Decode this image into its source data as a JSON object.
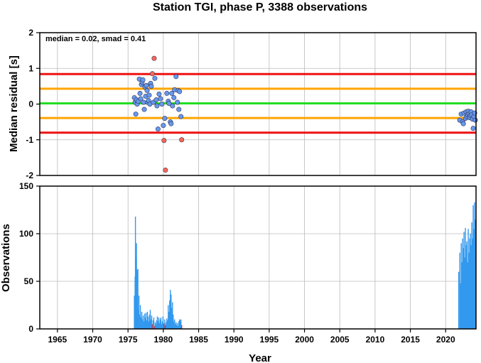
{
  "chart_data": [
    {
      "type": "scatter",
      "title": "Station TGI, phase P, 3388 observations",
      "ylabel": "Median residual [s]",
      "xlim": [
        1962.5,
        2024.3
      ],
      "ylim": [
        -2,
        2
      ],
      "yticks": [
        -2,
        -1,
        0,
        1,
        2
      ],
      "grid": true,
      "annotation": "median = 0.02, smad = 0.41",
      "reference_lines": [
        {
          "y": 0.02,
          "color": "#22dd22"
        },
        {
          "y": 0.43,
          "color": "#ffa500"
        },
        {
          "y": -0.39,
          "color": "#ffa500"
        },
        {
          "y": 0.84,
          "color": "#ee1111"
        },
        {
          "y": -0.8,
          "color": "#ee1111"
        }
      ],
      "colors": {
        "normal": "#6699ee",
        "outlier": "#ff6655"
      },
      "points": [
        {
          "x": 1975.9,
          "y": 0.18
        },
        {
          "x": 1976.0,
          "y": 0.05
        },
        {
          "x": 1976.1,
          "y": -0.28
        },
        {
          "x": 1976.2,
          "y": 0.12
        },
        {
          "x": 1976.3,
          "y": 0.0
        },
        {
          "x": 1976.45,
          "y": 0.08
        },
        {
          "x": 1976.6,
          "y": 0.7
        },
        {
          "x": 1976.7,
          "y": 0.3
        },
        {
          "x": 1976.8,
          "y": 0.15
        },
        {
          "x": 1976.9,
          "y": 0.55
        },
        {
          "x": 1977.0,
          "y": 0.62
        },
        {
          "x": 1977.1,
          "y": 0.68
        },
        {
          "x": 1977.2,
          "y": 0.05
        },
        {
          "x": 1977.3,
          "y": -0.15
        },
        {
          "x": 1977.4,
          "y": 0.48
        },
        {
          "x": 1977.5,
          "y": 0.22
        },
        {
          "x": 1977.6,
          "y": 0.52
        },
        {
          "x": 1977.7,
          "y": 0.38
        },
        {
          "x": 1977.8,
          "y": 0.05
        },
        {
          "x": 1977.9,
          "y": 0.1
        },
        {
          "x": 1978.0,
          "y": 0.25
        },
        {
          "x": 1978.1,
          "y": 0.0
        },
        {
          "x": 1978.2,
          "y": 0.58
        },
        {
          "x": 1978.3,
          "y": 0.5
        },
        {
          "x": 1978.45,
          "y": 0.85,
          "outlier": true
        },
        {
          "x": 1978.6,
          "y": 0.05
        },
        {
          "x": 1978.7,
          "y": 1.28,
          "outlier": true
        },
        {
          "x": 1978.8,
          "y": 0.72
        },
        {
          "x": 1979.0,
          "y": 0.12
        },
        {
          "x": 1979.1,
          "y": -0.05
        },
        {
          "x": 1979.25,
          "y": -0.7
        },
        {
          "x": 1979.4,
          "y": 0.28
        },
        {
          "x": 1979.6,
          "y": 0.15
        },
        {
          "x": 1979.8,
          "y": 0.0
        },
        {
          "x": 1980.0,
          "y": -0.6
        },
        {
          "x": 1980.1,
          "y": -1.02,
          "outlier": true
        },
        {
          "x": 1980.2,
          "y": -0.4
        },
        {
          "x": 1980.3,
          "y": -1.85,
          "outlier": true
        },
        {
          "x": 1980.5,
          "y": 0.3
        },
        {
          "x": 1980.7,
          "y": 0.08
        },
        {
          "x": 1980.8,
          "y": 0.02
        },
        {
          "x": 1981.0,
          "y": -0.5
        },
        {
          "x": 1981.1,
          "y": -0.55
        },
        {
          "x": 1981.2,
          "y": 0.3
        },
        {
          "x": 1981.3,
          "y": -0.05
        },
        {
          "x": 1981.5,
          "y": 0.18
        },
        {
          "x": 1981.6,
          "y": 0.4
        },
        {
          "x": 1981.8,
          "y": 0.77
        },
        {
          "x": 1982.0,
          "y": 0.05
        },
        {
          "x": 1982.1,
          "y": 0.38
        },
        {
          "x": 1982.2,
          "y": -0.15
        },
        {
          "x": 1982.3,
          "y": 0.35
        },
        {
          "x": 1982.5,
          "y": -0.35
        },
        {
          "x": 1982.6,
          "y": -1.0,
          "outlier": true
        },
        {
          "x": 2022.0,
          "y": -0.45
        },
        {
          "x": 2022.2,
          "y": -0.28
        },
        {
          "x": 2022.4,
          "y": -0.5
        },
        {
          "x": 2022.5,
          "y": -0.55
        },
        {
          "x": 2022.6,
          "y": -0.25
        },
        {
          "x": 2022.8,
          "y": -0.4
        },
        {
          "x": 2022.9,
          "y": -0.22
        },
        {
          "x": 2023.0,
          "y": -0.35
        },
        {
          "x": 2023.1,
          "y": -0.3
        },
        {
          "x": 2023.2,
          "y": -0.2
        },
        {
          "x": 2023.3,
          "y": -0.28
        },
        {
          "x": 2023.4,
          "y": -0.38
        },
        {
          "x": 2023.5,
          "y": -0.32
        },
        {
          "x": 2023.6,
          "y": -0.22
        },
        {
          "x": 2023.7,
          "y": -0.3
        },
        {
          "x": 2023.8,
          "y": -0.42
        },
        {
          "x": 2023.9,
          "y": -0.68
        },
        {
          "x": 2024.0,
          "y": -0.35
        },
        {
          "x": 2024.1,
          "y": -0.25
        },
        {
          "x": 2024.2,
          "y": -0.45
        }
      ]
    },
    {
      "type": "bar",
      "xlabel": "Year",
      "ylabel": "Observations",
      "xlim": [
        1962.5,
        2024.3
      ],
      "ylim": [
        0,
        150
      ],
      "yticks": [
        0,
        50,
        100,
        150
      ],
      "xticks": [
        1965,
        1970,
        1975,
        1980,
        1985,
        1990,
        1995,
        2000,
        2005,
        2010,
        2015,
        2020
      ],
      "grid": true,
      "colors": {
        "normal": "#3399ee",
        "outlier": "#ee2222"
      },
      "bars": [
        {
          "x": 1975.9,
          "y": 35
        },
        {
          "x": 1976.0,
          "y": 55
        },
        {
          "x": 1976.05,
          "y": 118
        },
        {
          "x": 1976.1,
          "y": 75
        },
        {
          "x": 1976.15,
          "y": 40
        },
        {
          "x": 1976.2,
          "y": 90
        },
        {
          "x": 1976.25,
          "y": 50
        },
        {
          "x": 1976.3,
          "y": 62
        },
        {
          "x": 1976.35,
          "y": 30
        },
        {
          "x": 1976.4,
          "y": 63
        },
        {
          "x": 1976.45,
          "y": 20
        },
        {
          "x": 1976.55,
          "y": 35
        },
        {
          "x": 1976.65,
          "y": 15
        },
        {
          "x": 1976.75,
          "y": 25
        },
        {
          "x": 1976.85,
          "y": 12
        },
        {
          "x": 1976.95,
          "y": 18
        },
        {
          "x": 1977.05,
          "y": 10
        },
        {
          "x": 1977.15,
          "y": 14
        },
        {
          "x": 1977.25,
          "y": 8
        },
        {
          "x": 1977.35,
          "y": 16
        },
        {
          "x": 1977.45,
          "y": 12
        },
        {
          "x": 1977.55,
          "y": 17
        },
        {
          "x": 1977.65,
          "y": 9
        },
        {
          "x": 1977.75,
          "y": 18
        },
        {
          "x": 1977.85,
          "y": 13
        },
        {
          "x": 1977.95,
          "y": 8
        },
        {
          "x": 1978.05,
          "y": 15
        },
        {
          "x": 1978.15,
          "y": 20
        },
        {
          "x": 1978.25,
          "y": 10
        },
        {
          "x": 1978.35,
          "y": 14
        },
        {
          "x": 1978.45,
          "y": 5,
          "outlier": true
        },
        {
          "x": 1978.55,
          "y": 9
        },
        {
          "x": 1978.65,
          "y": 12
        },
        {
          "x": 1978.75,
          "y": 3,
          "outlier": true
        },
        {
          "x": 1978.85,
          "y": 7
        },
        {
          "x": 1978.95,
          "y": 5
        },
        {
          "x": 1979.05,
          "y": 9
        },
        {
          "x": 1979.15,
          "y": 13
        },
        {
          "x": 1979.25,
          "y": 8
        },
        {
          "x": 1979.35,
          "y": 12
        },
        {
          "x": 1979.45,
          "y": 6
        },
        {
          "x": 1979.55,
          "y": 10
        },
        {
          "x": 1979.65,
          "y": 12
        },
        {
          "x": 1979.75,
          "y": 5
        },
        {
          "x": 1979.85,
          "y": 8
        },
        {
          "x": 1979.95,
          "y": 13
        },
        {
          "x": 1980.05,
          "y": 4
        },
        {
          "x": 1980.1,
          "y": 6,
          "outlier": true
        },
        {
          "x": 1980.2,
          "y": 10
        },
        {
          "x": 1980.3,
          "y": 4,
          "outlier": true
        },
        {
          "x": 1980.4,
          "y": 7
        },
        {
          "x": 1980.5,
          "y": 11
        },
        {
          "x": 1980.6,
          "y": 9
        },
        {
          "x": 1980.7,
          "y": 25
        },
        {
          "x": 1980.8,
          "y": 18
        },
        {
          "x": 1980.9,
          "y": 30
        },
        {
          "x": 1981.0,
          "y": 41
        },
        {
          "x": 1981.1,
          "y": 36
        },
        {
          "x": 1981.2,
          "y": 22
        },
        {
          "x": 1981.3,
          "y": 28
        },
        {
          "x": 1981.4,
          "y": 15
        },
        {
          "x": 1981.5,
          "y": 8
        },
        {
          "x": 1981.6,
          "y": 10
        },
        {
          "x": 1981.7,
          "y": 5
        },
        {
          "x": 1981.8,
          "y": 7
        },
        {
          "x": 1981.9,
          "y": 4
        },
        {
          "x": 1982.0,
          "y": 6
        },
        {
          "x": 1982.1,
          "y": 3
        },
        {
          "x": 1982.2,
          "y": 8
        },
        {
          "x": 1982.3,
          "y": 10
        },
        {
          "x": 1982.4,
          "y": 9
        },
        {
          "x": 1982.5,
          "y": 10
        },
        {
          "x": 1982.6,
          "y": 4,
          "outlier": true
        },
        {
          "x": 2021.85,
          "y": 60
        },
        {
          "x": 2022.0,
          "y": 80
        },
        {
          "x": 2022.1,
          "y": 48
        },
        {
          "x": 2022.2,
          "y": 90
        },
        {
          "x": 2022.3,
          "y": 70
        },
        {
          "x": 2022.4,
          "y": 95
        },
        {
          "x": 2022.5,
          "y": 85
        },
        {
          "x": 2022.6,
          "y": 102
        },
        {
          "x": 2022.7,
          "y": 75
        },
        {
          "x": 2022.8,
          "y": 106
        },
        {
          "x": 2022.9,
          "y": 88
        },
        {
          "x": 2023.0,
          "y": 92
        },
        {
          "x": 2023.1,
          "y": 70
        },
        {
          "x": 2023.2,
          "y": 105
        },
        {
          "x": 2023.3,
          "y": 80
        },
        {
          "x": 2023.4,
          "y": 95
        },
        {
          "x": 2023.5,
          "y": 100
        },
        {
          "x": 2023.6,
          "y": 88
        },
        {
          "x": 2023.7,
          "y": 112
        },
        {
          "x": 2023.8,
          "y": 95
        },
        {
          "x": 2023.9,
          "y": 130
        },
        {
          "x": 2024.0,
          "y": 105
        },
        {
          "x": 2024.1,
          "y": 133
        },
        {
          "x": 2024.2,
          "y": 115
        }
      ]
    }
  ]
}
